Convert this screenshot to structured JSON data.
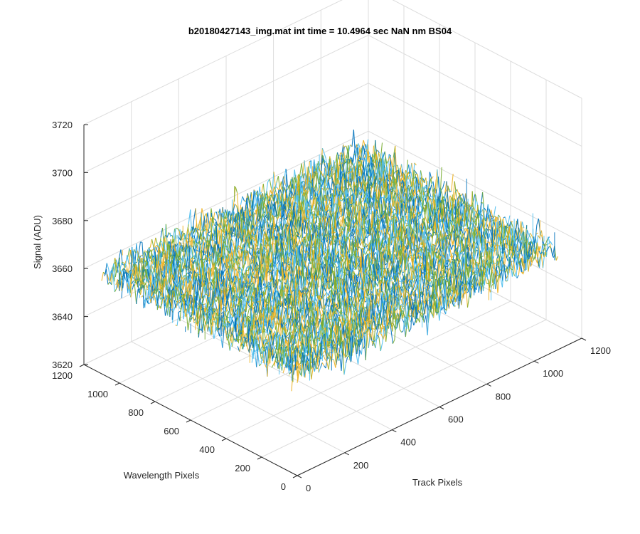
{
  "chart_data": {
    "type": "surface",
    "title": "b20180427143_img.mat int time = 10.4964 sec  NaN nm BS04",
    "xlabel": "Track Pixels",
    "ylabel": "Wavelength Pixels",
    "zlabel": "Signal (ADU)",
    "xlim": [
      0,
      1200
    ],
    "ylim": [
      0,
      1200
    ],
    "zlim": [
      3620,
      3720
    ],
    "x_ticks": [
      "0",
      "200",
      "400",
      "600",
      "800",
      "1000",
      "1200"
    ],
    "y_ticks": [
      "0",
      "200",
      "400",
      "600",
      "800",
      "1000",
      "1200"
    ],
    "z_ticks": [
      "3620",
      "3640",
      "3660",
      "3680",
      "3700",
      "3720"
    ],
    "data_extent": {
      "x": [
        0,
        1100
      ],
      "y": [
        0,
        1100
      ]
    },
    "signal_mean": 3662,
    "signal_range": [
      3625,
      3712
    ],
    "grid": true,
    "colors": {
      "low": "#0072BD",
      "mid": "#4DBEEE",
      "mid2": "#77AC30",
      "high": "#EDB120"
    }
  }
}
